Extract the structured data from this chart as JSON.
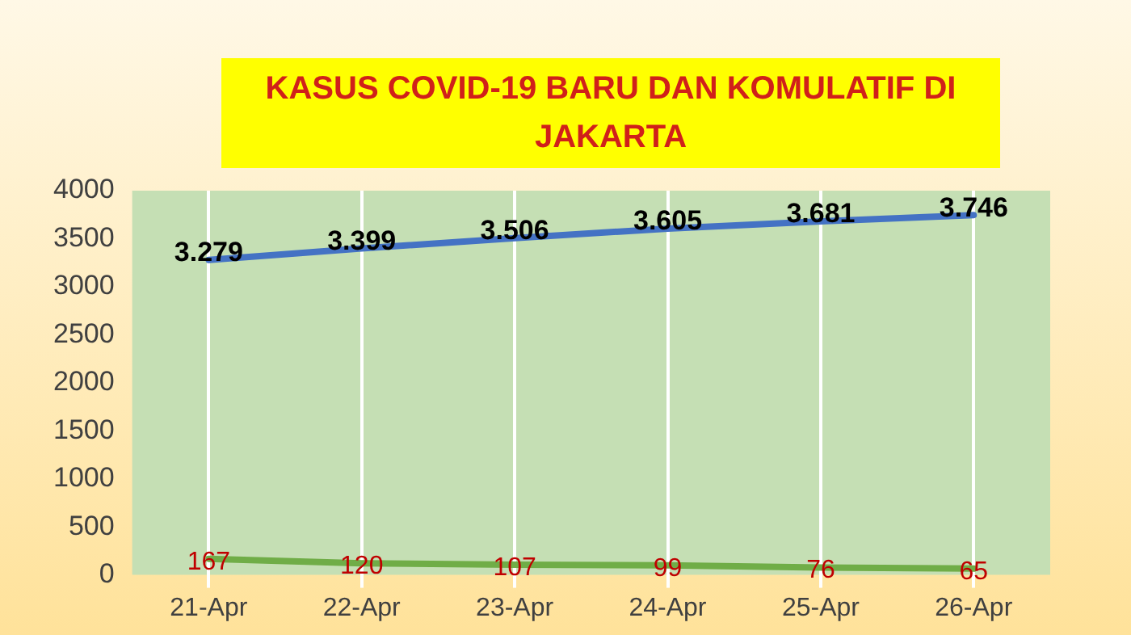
{
  "chart_data": {
    "type": "line",
    "title": "KASUS COVID-19 BARU DAN KOMULATIF DI JAKARTA",
    "categories": [
      "21-Apr",
      "22-Apr",
      "23-Apr",
      "24-Apr",
      "25-Apr",
      "26-Apr"
    ],
    "series": [
      {
        "color": "#4472c4",
        "values": [
          3279,
          3399,
          3506,
          3605,
          3681,
          3746
        ],
        "value_labels": [
          "3.279",
          "3.399",
          "3.506",
          "3.605",
          "3.681",
          "3.746"
        ]
      },
      {
        "color": "#70ad47",
        "values": [
          167,
          120,
          107,
          99,
          76,
          65
        ],
        "value_labels": [
          "167",
          "120",
          "107",
          "99",
          "76",
          "65"
        ]
      }
    ],
    "ylim": [
      0,
      4000
    ],
    "yticks": [
      0,
      500,
      1000,
      1500,
      2000,
      2500,
      3000,
      3500,
      4000
    ],
    "grid": "x",
    "legend": false,
    "marker": "none",
    "line_style": "solid"
  }
}
